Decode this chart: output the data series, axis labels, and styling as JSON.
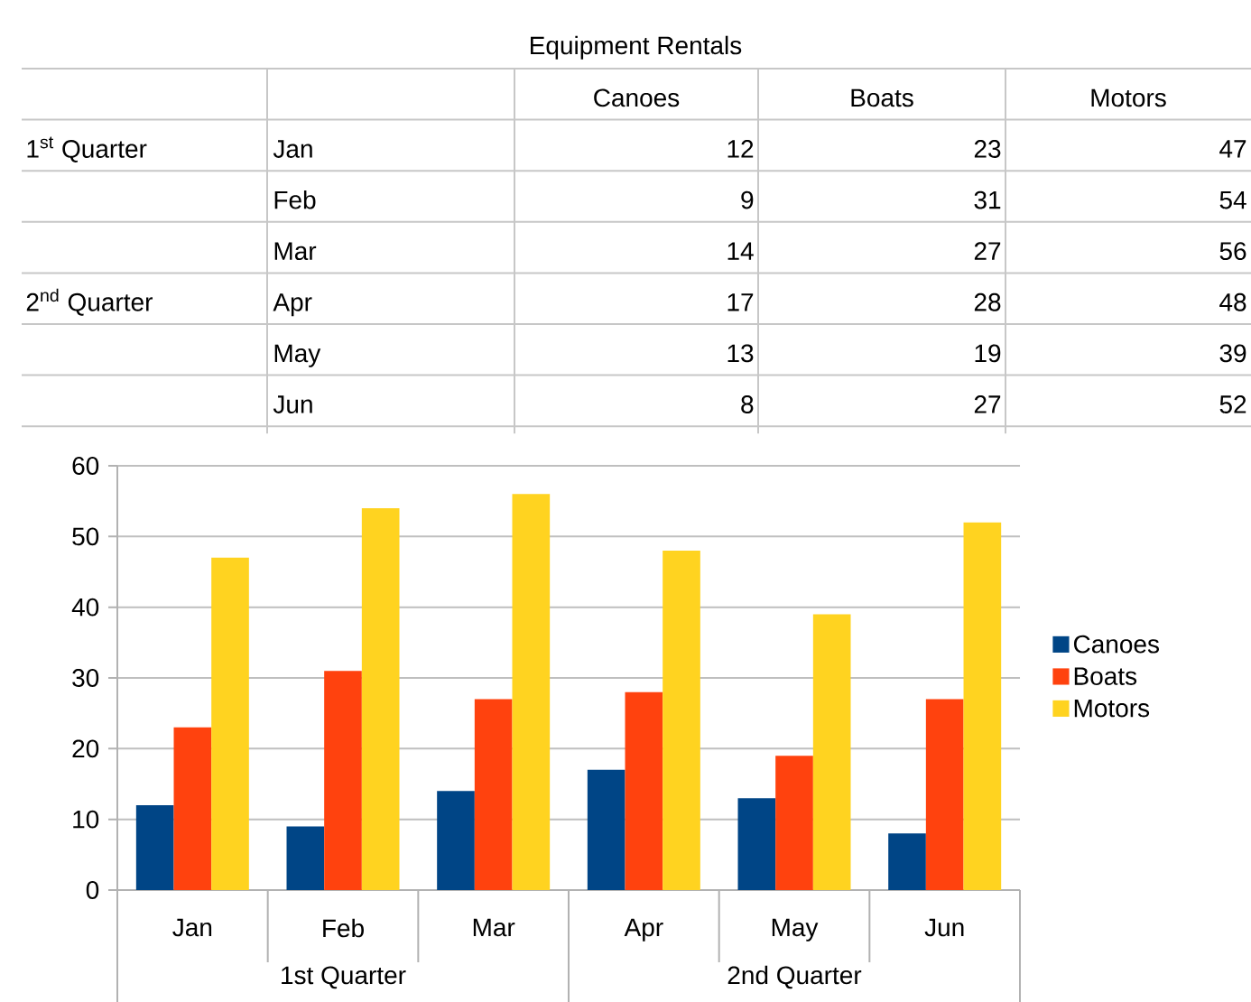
{
  "chart_data": [
    {
      "type": "other",
      "title": "Equipment Rentals",
      "categories": [
        "Jan",
        "Feb",
        "Mar",
        "Apr",
        "May",
        "Jun"
      ],
      "series": [
        {
          "name": "Canoes",
          "values": [
            12,
            9,
            14,
            17,
            13,
            8
          ]
        },
        {
          "name": "Boats",
          "values": [
            23,
            31,
            27,
            28,
            19,
            27
          ]
        },
        {
          "name": "Motors",
          "values": [
            47,
            54,
            56,
            48,
            39,
            52
          ]
        }
      ],
      "data_labels": true,
      "annotations": [
        "1$^{st}$ Quarter",
        "2$^{nd}$ Quarter"
      ]
    },
    {
      "type": "bar",
      "categories": [
        "Jan",
        "Feb",
        "Mar",
        "Apr",
        "May",
        "Jun"
      ],
      "series": [
        {
          "name": "Canoes",
          "color": "#004586",
          "values": [
            12,
            9,
            14,
            17,
            13,
            8
          ]
        },
        {
          "name": "Boats",
          "color": "#ff420e",
          "values": [
            23,
            31,
            27,
            28,
            19,
            27
          ]
        },
        {
          "name": "Motors",
          "color": "#ffd320",
          "values": [
            47,
            54,
            56,
            48,
            39,
            52
          ]
        }
      ],
      "ylim": [
        0,
        60
      ],
      "yticks": [
        0,
        10,
        20,
        30,
        40,
        50,
        60
      ],
      "grid": "y",
      "legend": "right",
      "annotations": [
        "1st Quarter",
        "2nd Quarter"
      ]
    }
  ]
}
